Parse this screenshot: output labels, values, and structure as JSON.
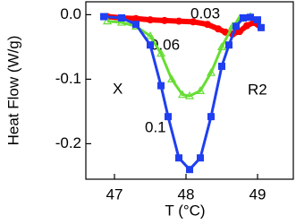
{
  "chart_data": {
    "type": "line",
    "x_label": "T (°C)",
    "y_label": "Heat Flow (W/g)",
    "xlim": [
      46.6,
      49.5
    ],
    "ylim": [
      -0.255,
      0.02
    ],
    "xticks": [
      47,
      48,
      49
    ],
    "yticks": [
      {
        "value": 0,
        "label": "0.0"
      },
      -0.1,
      -0.2
    ],
    "annotations": [
      "X",
      "R2"
    ],
    "series": [
      {
        "name": "0.03",
        "color": "#ff0000",
        "marker": "circle",
        "x": [
          46.9,
          47.1,
          47.3,
          47.5,
          47.7,
          47.9,
          48.1,
          48.3,
          48.45,
          48.55,
          48.65,
          48.75,
          48.85,
          48.95,
          49.05
        ],
        "values": [
          -0.003,
          -0.005,
          -0.006,
          -0.008,
          -0.009,
          -0.01,
          -0.011,
          -0.015,
          -0.022,
          -0.027,
          -0.03,
          -0.026,
          -0.017,
          -0.012,
          -0.02
        ]
      },
      {
        "name": "0.06",
        "color": "#66dd33",
        "marker": "triangle",
        "x": [
          46.9,
          47.1,
          47.3,
          47.5,
          47.65,
          47.8,
          47.95,
          48.05,
          48.2,
          48.35,
          48.5,
          48.65,
          48.75,
          48.9
        ],
        "values": [
          -0.01,
          -0.012,
          -0.018,
          -0.033,
          -0.06,
          -0.1,
          -0.124,
          -0.126,
          -0.118,
          -0.09,
          -0.05,
          -0.018,
          -0.006,
          -0.003
        ]
      },
      {
        "name": "0.1",
        "color": "#1f3ff0",
        "marker": "square",
        "x": [
          46.85,
          47.1,
          47.3,
          47.5,
          47.65,
          47.75,
          47.9,
          48.05,
          48.2,
          48.35,
          48.5,
          48.6,
          48.7,
          48.8,
          48.9,
          49.0,
          49.05
        ],
        "values": [
          -0.003,
          -0.005,
          -0.015,
          -0.047,
          -0.11,
          -0.158,
          -0.222,
          -0.24,
          -0.222,
          -0.158,
          -0.08,
          -0.047,
          -0.018,
          -0.005,
          -0.004,
          -0.008,
          -0.02
        ]
      }
    ]
  }
}
